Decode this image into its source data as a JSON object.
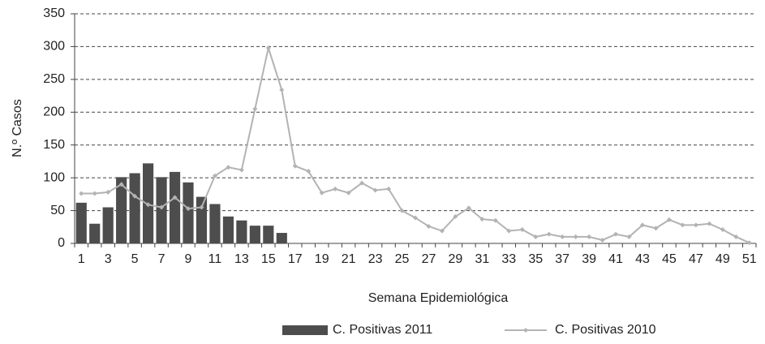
{
  "chart_data": {
    "type": "combo",
    "y_label": "N.º Casos",
    "x_label": "Semana Epidemiológica",
    "categories": [
      "1",
      null,
      "3",
      null,
      "5",
      null,
      "7",
      null,
      "9",
      null,
      "11",
      null,
      "13",
      null,
      "15",
      null,
      "17",
      null,
      "19",
      null,
      "21",
      null,
      "23",
      null,
      "25",
      null,
      "27",
      null,
      "29",
      null,
      "31",
      null,
      "33",
      null,
      "35",
      null,
      "37",
      null,
      "39",
      null,
      "41",
      null,
      "43",
      null,
      "45",
      null,
      "47",
      null,
      "49",
      null,
      "51"
    ],
    "series": [
      {
        "name": "C. Positivas 2011",
        "type": "bar",
        "color": "#4d4d4d",
        "values": [
          62,
          30,
          55,
          101,
          107,
          122,
          101,
          109,
          93,
          71,
          60,
          41,
          35,
          27,
          27,
          16,
          null,
          null,
          null,
          null,
          null,
          null,
          null,
          null,
          null,
          null,
          null,
          null,
          null,
          null,
          null,
          null,
          null,
          null,
          null,
          null,
          null,
          null,
          null,
          null,
          null,
          null,
          null,
          null,
          null,
          null,
          null,
          null,
          null,
          null,
          null
        ]
      },
      {
        "name": "C. Positivas 2010",
        "type": "line",
        "color": "#b3b3b3",
        "values": [
          76,
          76,
          78,
          90,
          72,
          59,
          55,
          70,
          53,
          55,
          103,
          116,
          112,
          205,
          298,
          234,
          118,
          110,
          77,
          83,
          77,
          92,
          81,
          83,
          50,
          39,
          26,
          19,
          41,
          54,
          37,
          35,
          19,
          21,
          10,
          14,
          10,
          10,
          10,
          5,
          14,
          10,
          28,
          23,
          36,
          28,
          28,
          30,
          21,
          10,
          1
        ]
      }
    ],
    "ylim": [
      0,
      350
    ],
    "yticks": [
      0,
      50,
      100,
      150,
      200,
      250,
      300,
      350
    ],
    "grid": true,
    "legend": "bottom"
  }
}
